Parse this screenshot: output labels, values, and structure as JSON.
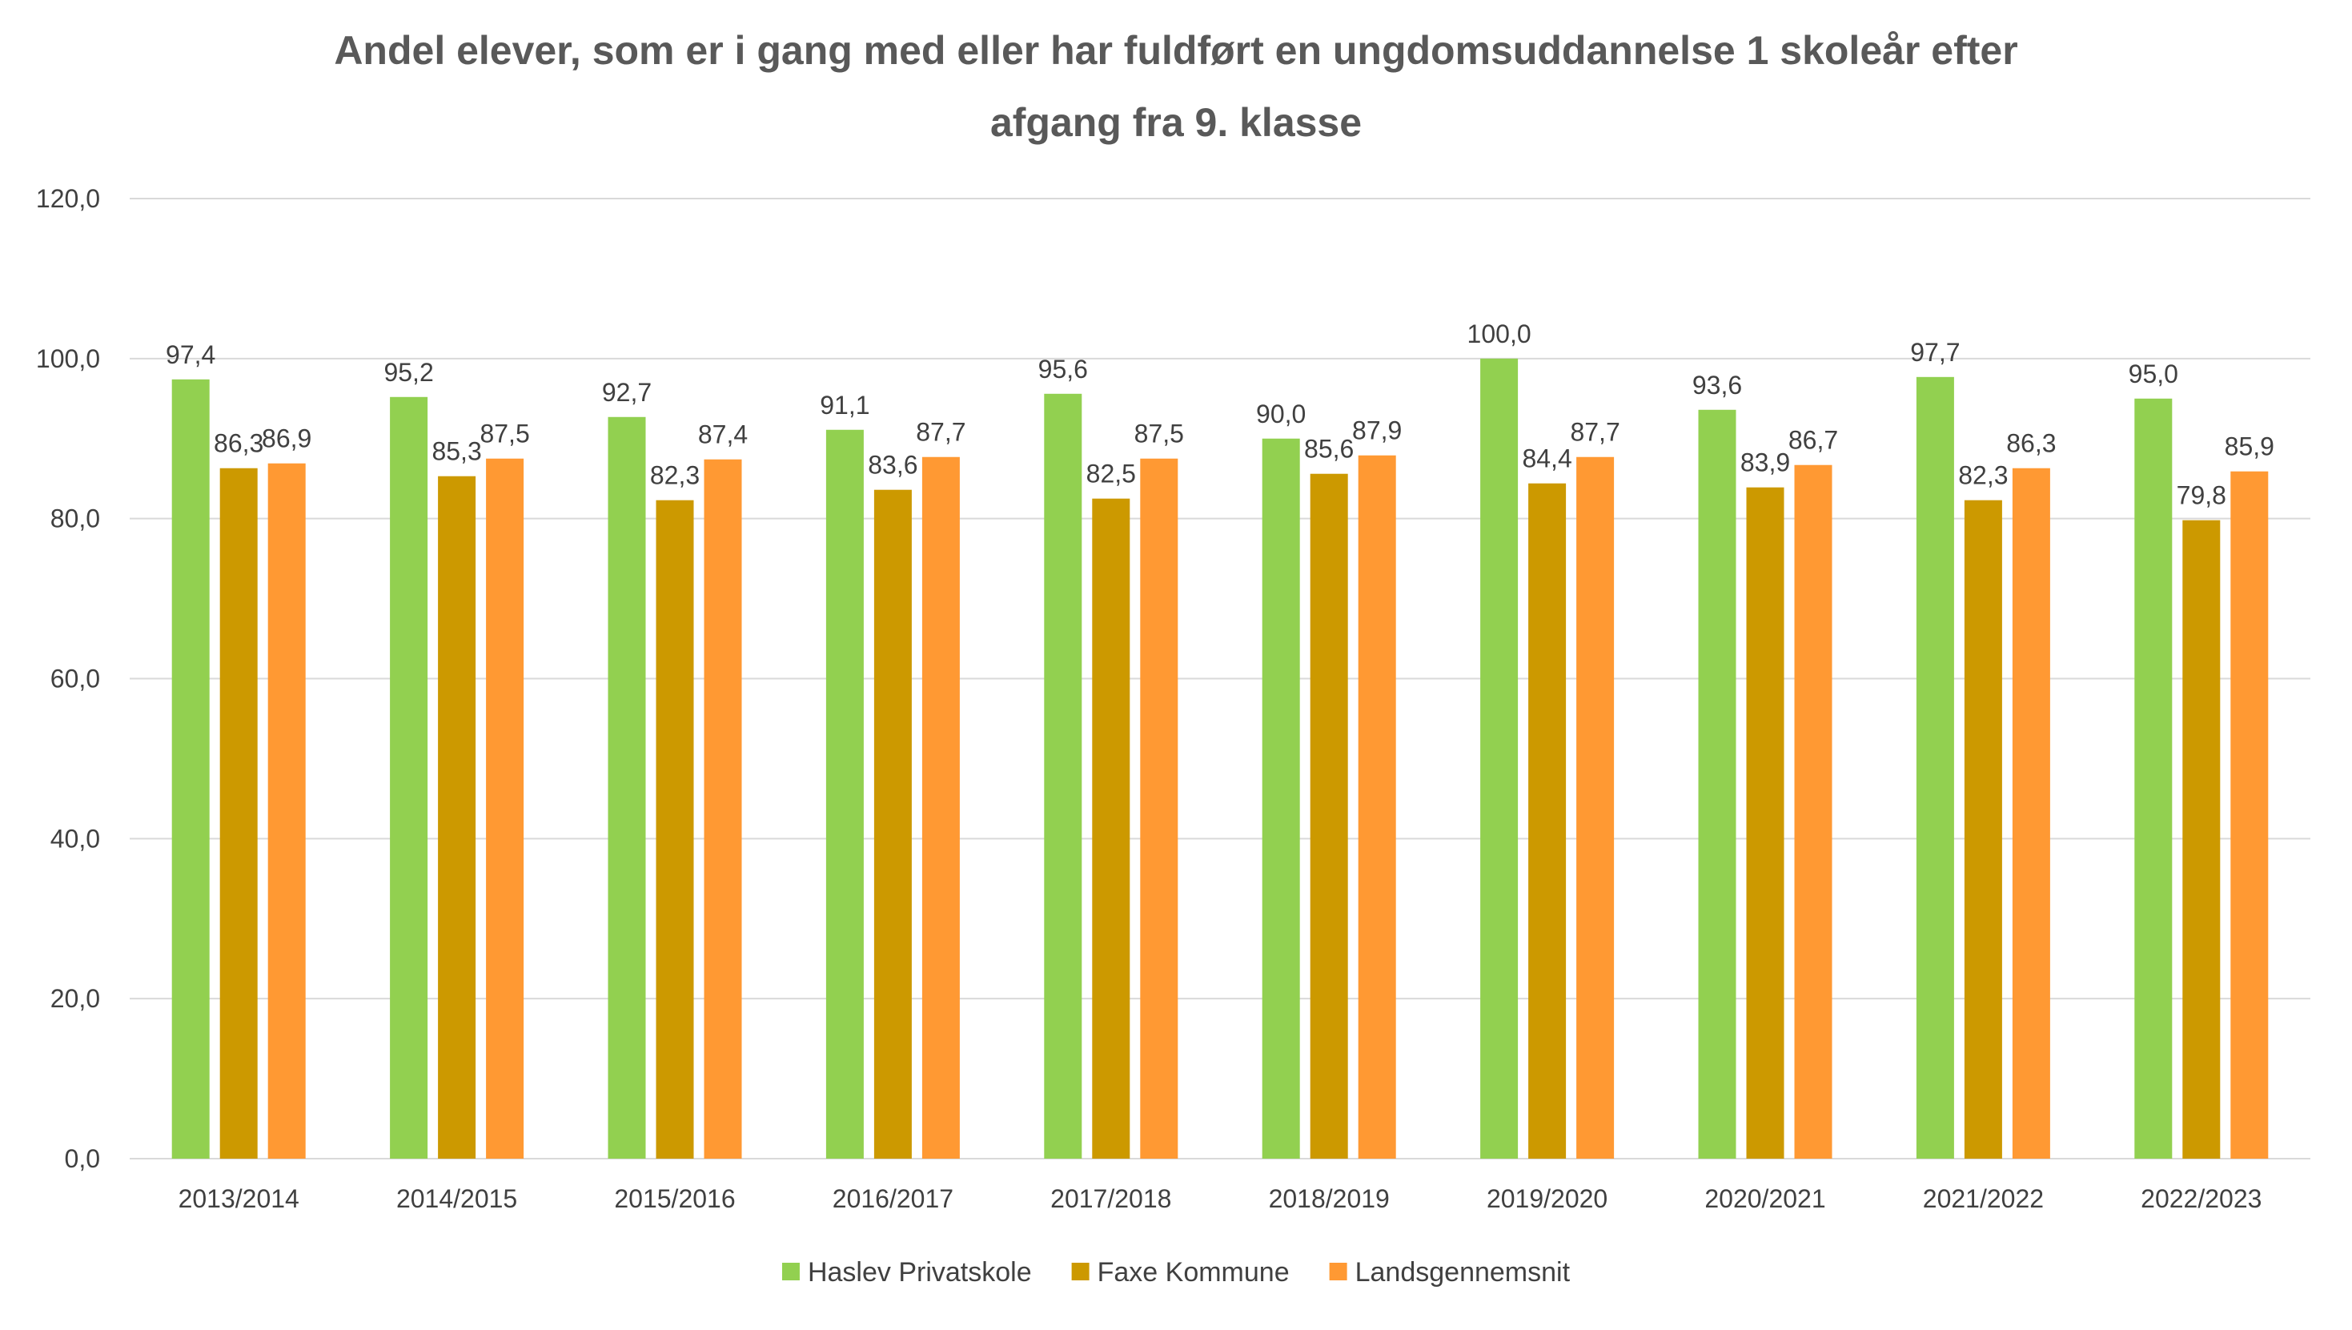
{
  "chart_data": {
    "type": "bar",
    "title_lines": [
      "Andel elever, som er i gang med eller har fuldført en ungdomsuddannelse 1 skoleår efter",
      "afgang fra 9. klasse"
    ],
    "categories": [
      "2013/2014",
      "2014/2015",
      "2015/2016",
      "2016/2017",
      "2017/2018",
      "2018/2019",
      "2019/2020",
      "2020/2021",
      "2021/2022",
      "2022/2023"
    ],
    "series": [
      {
        "name": "Haslev Privatskole",
        "color": "#92d050",
        "values": [
          97.4,
          95.2,
          92.7,
          91.1,
          95.6,
          90.0,
          100.0,
          93.6,
          97.7,
          95.0
        ],
        "labels": [
          "97,4",
          "95,2",
          "92,7",
          "91,1",
          "95,6",
          "90,0",
          "100,0",
          "93,6",
          "97,7",
          "95,0"
        ]
      },
      {
        "name": "Faxe Kommune",
        "color": "#cc9900",
        "values": [
          86.3,
          85.3,
          82.3,
          83.6,
          82.5,
          85.6,
          84.4,
          83.9,
          82.3,
          79.8
        ],
        "labels": [
          "86,3",
          "85,3",
          "82,3",
          "83,6",
          "82,5",
          "85,6",
          "84,4",
          "83,9",
          "82,3",
          "79,8"
        ]
      },
      {
        "name": "Landsgennemsnit",
        "color": "#ff9933",
        "values": [
          86.9,
          87.5,
          87.4,
          87.7,
          87.5,
          87.9,
          87.7,
          86.7,
          86.3,
          85.9
        ],
        "labels": [
          "86,9",
          "87,5",
          "87,4",
          "87,7",
          "87,5",
          "87,9",
          "87,7",
          "86,7",
          "86,3",
          "85,9"
        ]
      }
    ],
    "ylim": [
      0,
      120
    ],
    "yticks": [
      0,
      20,
      40,
      60,
      80,
      100,
      120
    ],
    "ytick_labels": [
      "0,0",
      "20,0",
      "40,0",
      "60,0",
      "80,0",
      "100,0",
      "120,0"
    ],
    "grid": true,
    "legend_position": "bottom"
  }
}
